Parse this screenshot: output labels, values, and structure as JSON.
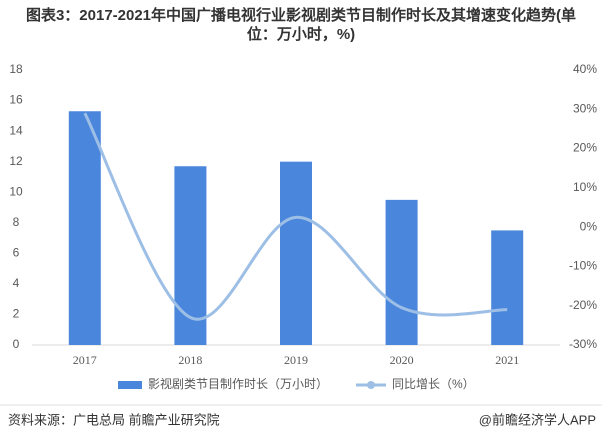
{
  "chart_data": {
    "type": "combo",
    "title": "图表3：2017-2021年中国广播电视行业影视剧类节目制作时长及其增速变化趋势(单位：万小时，%)",
    "categories": [
      "2017",
      "2018",
      "2019",
      "2020",
      "2021"
    ],
    "series": [
      {
        "name": "影视剧类节目制作时长（万小时）",
        "type": "bar",
        "color": "#4a86dc",
        "values": [
          15.3,
          11.7,
          12.0,
          9.5,
          7.5
        ]
      },
      {
        "name": "同比增长（%）",
        "type": "line",
        "color": "#9dbfe6",
        "axis": "y2",
        "values": [
          29,
          -23,
          2.5,
          -20.5,
          -21
        ]
      }
    ],
    "ylim": [
      0,
      18
    ],
    "yticks": [
      0,
      2,
      4,
      6,
      8,
      10,
      12,
      14,
      16,
      18
    ],
    "y2lim": [
      -30,
      40
    ],
    "y2ticks": [
      {
        "value": -30,
        "label": "-30%"
      },
      {
        "value": -20,
        "label": "-20%"
      },
      {
        "value": -10,
        "label": "-10%"
      },
      {
        "value": 0,
        "label": "0%"
      },
      {
        "value": 10,
        "label": "10%"
      },
      {
        "value": 20,
        "label": "20%"
      },
      {
        "value": 30,
        "label": "30%"
      },
      {
        "value": 40,
        "label": "40%"
      }
    ],
    "grid": false
  },
  "footer": {
    "source": "资料来源：广电总局 前瞻产业研究院",
    "credit": "@前瞻经济学人APP"
  }
}
